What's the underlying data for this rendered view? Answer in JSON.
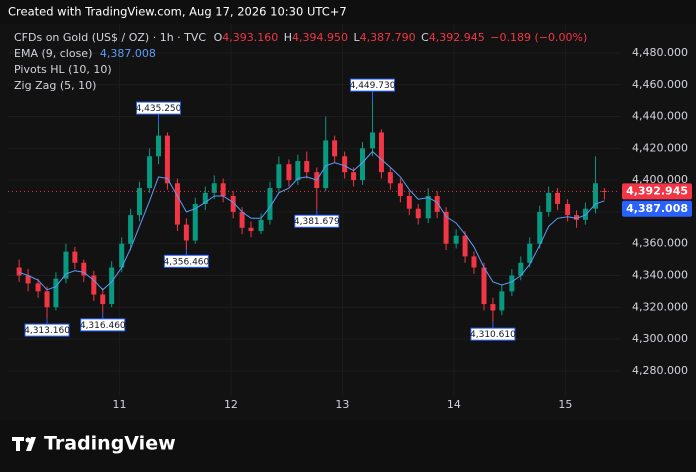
{
  "header": {
    "created": "Created with TradingView.com, Aug 17, 2026 10:30 UTC+7"
  },
  "footer": {
    "brand": "TradingView"
  },
  "chart_data": {
    "type": "candlestick",
    "symbol": "CFDs on Gold (US$ / OZ) · 1h · TVC",
    "ohlc_legend": {
      "o": "O",
      "open": "4,393.160",
      "h": "H",
      "high": "4,394.950",
      "l": "L",
      "low": "4,387.790",
      "c": "C",
      "close": "4,392.945",
      "change": "−0.189 (−0.00%)"
    },
    "indicators": [
      "Pivots HL (10, 10)",
      "Zig Zag (5, 10)"
    ],
    "up_color": "#089981",
    "down_color": "#f23645",
    "xlim": [
      10.0,
      15.49
    ],
    "xticks": [
      11,
      12,
      13,
      14,
      15
    ],
    "ylim": [
      4264.78,
      4494.47
    ],
    "yticks": [
      {
        "value": 4280,
        "label": "4,280.000"
      },
      {
        "value": 4300,
        "label": "4,300.000"
      },
      {
        "value": 4320,
        "label": "4,320.000"
      },
      {
        "value": 4340,
        "label": "4,340.000"
      },
      {
        "value": 4360,
        "label": "4,360.000"
      },
      {
        "value": 4380,
        "label": "4,380.000"
      },
      {
        "value": 4400,
        "label": "4,400.000"
      },
      {
        "value": 4420,
        "label": "4,420.000"
      },
      {
        "value": 4440,
        "label": "4,440.000"
      },
      {
        "value": 4460,
        "label": "4,460.000"
      },
      {
        "value": 4480,
        "label": "4,480.000"
      }
    ],
    "grid": true,
    "candles": {
      "x": [
        10.1,
        10.18,
        10.27,
        10.35,
        10.43,
        10.52,
        10.6,
        10.68,
        10.77,
        10.85,
        10.93,
        11.02,
        11.1,
        11.18,
        11.27,
        11.35,
        11.43,
        11.52,
        11.6,
        11.68,
        11.77,
        11.85,
        11.93,
        12.02,
        12.1,
        12.18,
        12.27,
        12.35,
        12.43,
        12.52,
        12.6,
        12.68,
        12.77,
        12.85,
        12.93,
        13.02,
        13.1,
        13.18,
        13.27,
        13.35,
        13.43,
        13.52,
        13.6,
        13.68,
        13.77,
        13.85,
        13.93,
        14.02,
        14.1,
        14.18,
        14.27,
        14.35,
        14.43,
        14.52,
        14.6,
        14.68,
        14.77,
        14.85,
        14.93,
        15.02,
        15.1,
        15.18,
        15.27,
        15.35
      ],
      "open": [
        4345,
        4340,
        4335,
        4330,
        4320,
        4338,
        4355,
        4348,
        4340,
        4328,
        4322,
        4345,
        4360,
        4378,
        4395,
        4415,
        4428,
        4398,
        4372,
        4362,
        4385,
        4392,
        4398,
        4390,
        4380,
        4370,
        4368,
        4375,
        4395,
        4410,
        4400,
        4412,
        4405,
        4395,
        4425,
        4415,
        4405,
        4400,
        4420,
        4430,
        4405,
        4398,
        4390,
        4382,
        4376,
        4390,
        4380,
        4360,
        4365,
        4352,
        4345,
        4322,
        4318,
        4330,
        4340,
        4348,
        4360,
        4380,
        4392,
        4385,
        4378,
        4375,
        4382,
        4393.16
      ],
      "high": [
        4350,
        4344,
        4338,
        4333,
        4342,
        4360,
        4358,
        4350,
        4343,
        4332,
        4349,
        4364,
        4382,
        4399,
        4420,
        4435.25,
        4430,
        4401,
        4376,
        4389,
        4396,
        4403,
        4401,
        4393,
        4383,
        4374,
        4379,
        4399,
        4415,
        4413,
        4416,
        4418,
        4408,
        4440,
        4428,
        4418,
        4408,
        4424,
        4449.73,
        4432,
        4408,
        4401,
        4393,
        4385,
        4395,
        4393,
        4383,
        4369,
        4368,
        4355,
        4348,
        4326,
        4334,
        4344,
        4352,
        4364,
        4384,
        4396,
        4395,
        4388,
        4381,
        4386,
        4415,
        4394.95
      ],
      "low": [
        4336,
        4330,
        4326,
        4313.16,
        4318,
        4335,
        4344,
        4336,
        4324,
        4316.46,
        4320,
        4342,
        4356,
        4374,
        4392,
        4410,
        4394,
        4368,
        4356.46,
        4360,
        4381,
        4388,
        4386,
        4376,
        4366,
        4364,
        4366,
        4372,
        4392,
        4396,
        4397,
        4401,
        4381.679,
        4393,
        4411,
        4401,
        4396,
        4397,
        4415,
        4401,
        4394,
        4386,
        4378,
        4372,
        4373,
        4376,
        4356,
        4357,
        4348,
        4341,
        4318,
        4310.61,
        4315,
        4327,
        4337,
        4345,
        4357,
        4377,
        4381,
        4374,
        4370,
        4372,
        4379,
        4387.79
      ],
      "close": [
        4340,
        4335,
        4330,
        4320,
        4338,
        4355,
        4348,
        4340,
        4328,
        4322,
        4345,
        4360,
        4378,
        4395,
        4415,
        4428,
        4398,
        4372,
        4362,
        4385,
        4392,
        4398,
        4390,
        4380,
        4370,
        4368,
        4375,
        4395,
        4410,
        4400,
        4412,
        4405,
        4395,
        4425,
        4415,
        4405,
        4400,
        4420,
        4430,
        4405,
        4398,
        4390,
        4382,
        4376,
        4390,
        4380,
        4360,
        4365,
        4352,
        4345,
        4322,
        4318,
        4330,
        4340,
        4348,
        4360,
        4380,
        4392,
        4385,
        4378,
        4375,
        4382,
        4398,
        4392.945
      ]
    },
    "last_price_label": "4,392.945",
    "ema": {
      "name": "EMA (9, close)",
      "legend_value": "4,387.008",
      "color": "#5b9cf6",
      "last_label": "4,387.008",
      "values": [
        4342,
        4340,
        4337,
        4331,
        4333,
        4341,
        4343,
        4342,
        4337,
        4331,
        4336,
        4345,
        4357,
        4371,
        4387,
        4402,
        4401,
        4390,
        4380,
        4382,
        4386,
        4390,
        4390,
        4386,
        4380,
        4376,
        4376,
        4383,
        4392,
        4395,
        4401,
        4402,
        4400,
        4409,
        4411,
        4409,
        4406,
        4411,
        4418,
        4413,
        4408,
        4402,
        4394,
        4388,
        4389,
        4386,
        4377,
        4373,
        4366,
        4358,
        4345,
        4336,
        4334,
        4336,
        4340,
        4347,
        4359,
        4371,
        4376,
        4377,
        4376,
        4378,
        4385,
        4387.008
      ]
    },
    "pivot_highs": [
      {
        "x": 11.35,
        "value": 4435.25,
        "label": "4,435.250"
      },
      {
        "x": 13.27,
        "value": 4449.73,
        "label": "4,449.730"
      }
    ],
    "pivot_lows": [
      {
        "x": 10.35,
        "value": 4313.16,
        "label": "4,313.160"
      },
      {
        "x": 10.85,
        "value": 4316.46,
        "label": "4,316.460"
      },
      {
        "x": 11.6,
        "value": 4356.46,
        "label": "4,356.460"
      },
      {
        "x": 12.77,
        "value": 4381.679,
        "label": "4,381.679"
      },
      {
        "x": 14.35,
        "value": 4310.61,
        "label": "4,310.610"
      }
    ]
  }
}
